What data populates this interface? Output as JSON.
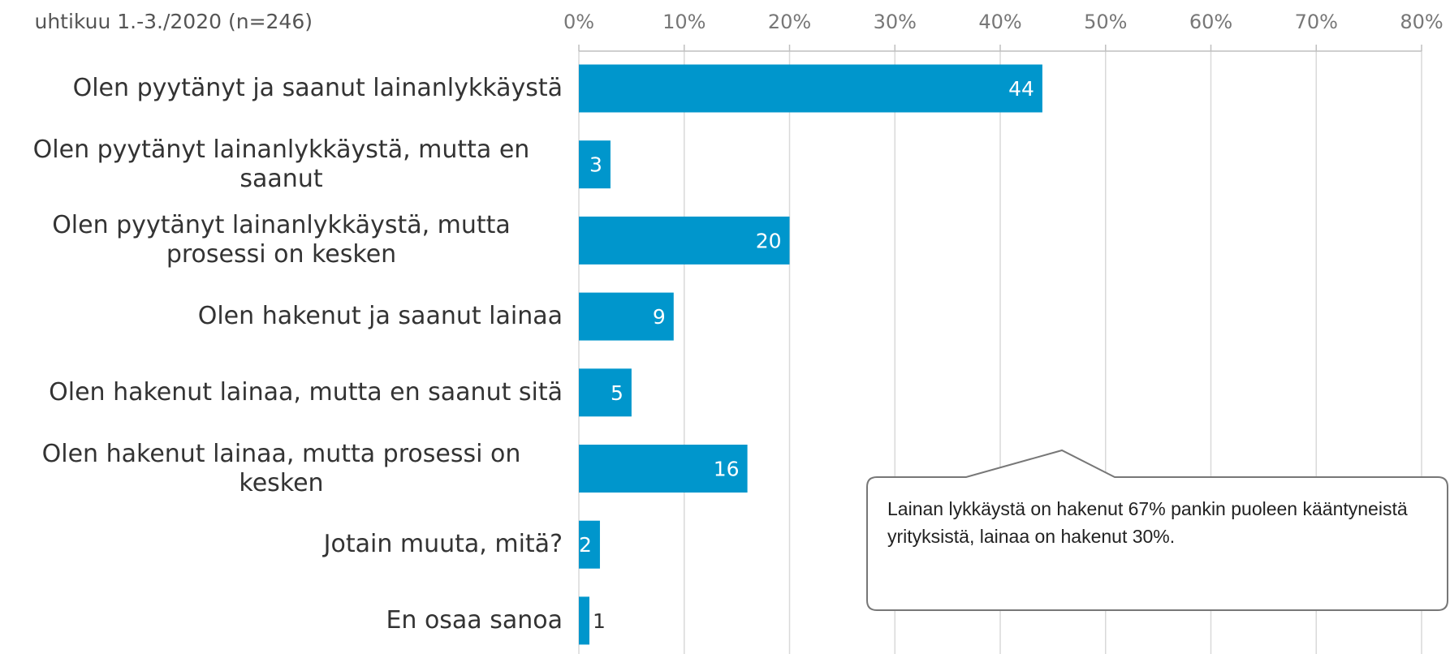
{
  "chart_data": {
    "type": "bar",
    "title": "uhtikuu 1.-3./2020 (n=246)",
    "categories": [
      "Olen pyytänyt ja saanut lainanlykkäystä",
      "Olen pyytänyt lainanlykkäystä, mutta en saanut",
      "Olen pyytänyt lainanlykkäystä, mutta prosessi on kesken",
      "Olen hakenut ja saanut lainaa",
      "Olen hakenut lainaa, mutta en saanut sitä",
      "Olen hakenut lainaa, mutta prosessi on kesken",
      "Jotain muuta, mitä?",
      "En osaa sanoa"
    ],
    "values": [
      44,
      3,
      20,
      9,
      5,
      16,
      2,
      1
    ],
    "color": "#0096cc",
    "xlim": [
      0,
      80
    ],
    "xticks": [
      {
        "value": 0,
        "label": "0%"
      },
      {
        "value": 10,
        "label": "10%"
      },
      {
        "value": 20,
        "label": "20%"
      },
      {
        "value": 30,
        "label": "30%"
      },
      {
        "value": 40,
        "label": "40%"
      },
      {
        "value": 50,
        "label": "50%"
      },
      {
        "value": 60,
        "label": "60%"
      },
      {
        "value": 70,
        "label": "70%"
      },
      {
        "value": 80,
        "label": "80%"
      }
    ],
    "grid": true,
    "annotation": "Lainan lykkäystä on hakenut 67% pankin puoleen kääntyneistä yrityksistä, lainaa on hakenut 30%."
  }
}
